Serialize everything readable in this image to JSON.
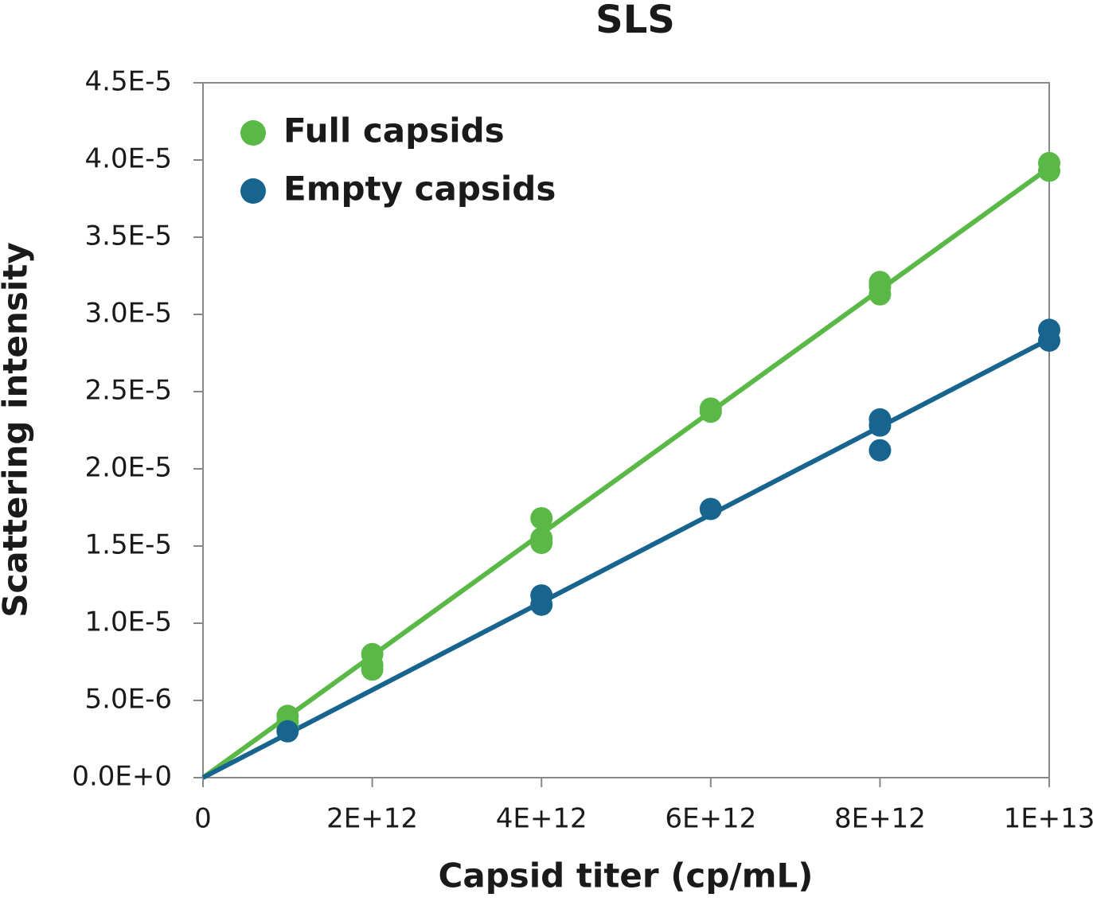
{
  "chart_data": {
    "type": "scatter",
    "title": "SLS",
    "x_label": "Capsid titer (cp/mL)",
    "y_label": "Scattering intensity",
    "xlim": [
      0,
      10000000000000
    ],
    "ylim": [
      0,
      4.5e-05
    ],
    "xticks": [
      0,
      {
        "value": 2000000000000,
        "label": "2E+12"
      },
      {
        "value": 4000000000000,
        "label": "4E+12"
      },
      {
        "value": 6000000000000,
        "label": "6E+12"
      },
      {
        "value": 8000000000000,
        "label": "8E+12"
      },
      {
        "value": 10000000000000,
        "label": "1E+13"
      }
    ],
    "yticks": [
      {
        "value": 0,
        "label": "0.0E+0"
      },
      {
        "value": 5e-06,
        "label": "5.0E-6"
      },
      {
        "value": 1e-05,
        "label": "1.0E-5"
      },
      {
        "value": 1.5e-05,
        "label": "1.5E-5"
      },
      {
        "value": 2e-05,
        "label": "2.0E-5"
      },
      {
        "value": 2.5e-05,
        "label": "2.5E-5"
      },
      {
        "value": 3e-05,
        "label": "3.0E-5"
      },
      {
        "value": 3.5e-05,
        "label": "3.5E-5"
      },
      {
        "value": 4e-05,
        "label": "4.0E-5"
      },
      {
        "value": 4.5e-05,
        "label": "4.5E-5"
      }
    ],
    "grid": false,
    "legend": "upper left",
    "series": [
      {
        "name": "Full capsids",
        "color": "#5ab946",
        "x": [
          1000000000000,
          1000000000000,
          1000000000000,
          2000000000000,
          2000000000000,
          2000000000000,
          4000000000000,
          4000000000000,
          4000000000000,
          6000000000000,
          6000000000000,
          8000000000000,
          8000000000000,
          8000000000000,
          10000000000000,
          10000000000000
        ],
        "values": [
          4e-06,
          3.6e-06,
          3.2e-06,
          8e-06,
          7e-06,
          7.3e-06,
          1.68e-05,
          1.55e-05,
          1.52e-05,
          2.39e-05,
          2.37e-05,
          3.21e-05,
          3.13e-05,
          3.18e-05,
          3.98e-05,
          3.93e-05
        ],
        "trendline": {
          "x": [
            0,
            10000000000000
          ],
          "y": [
            0,
            3.95e-05
          ]
        }
      },
      {
        "name": "Empty capsids",
        "color": "#17658f",
        "x": [
          1000000000000,
          4000000000000,
          4000000000000,
          6000000000000,
          8000000000000,
          8000000000000,
          8000000000000,
          10000000000000,
          10000000000000
        ],
        "values": [
          3e-06,
          1.18e-05,
          1.12e-05,
          1.74e-05,
          2.32e-05,
          2.28e-05,
          2.12e-05,
          2.9e-05,
          2.83e-05
        ],
        "trendline": {
          "x": [
            0,
            10000000000000
          ],
          "y": [
            0,
            2.84e-05
          ]
        }
      }
    ]
  }
}
